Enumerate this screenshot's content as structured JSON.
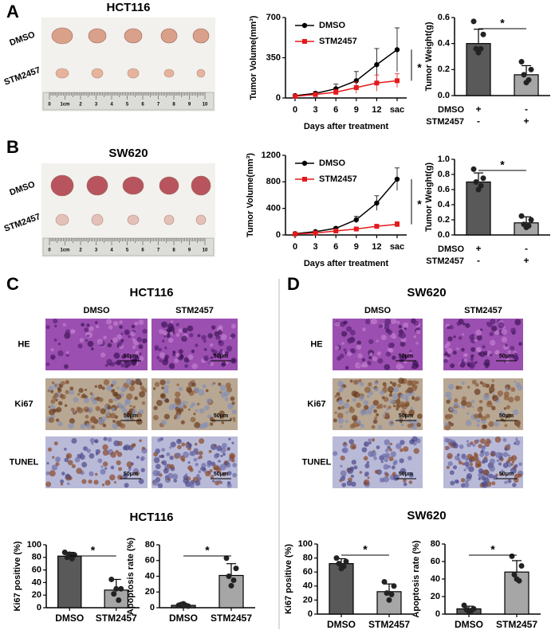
{
  "figure": {
    "panel_labels": [
      "A",
      "B",
      "C",
      "D"
    ],
    "photos": [
      {
        "title": "HCT116",
        "rows": [
          "DMSO",
          "STM2457"
        ],
        "ruler": [
          "0",
          "1cm",
          "2",
          "3",
          "4",
          "5",
          "6",
          "7",
          "8",
          "9",
          "10"
        ]
      },
      {
        "title": "SW620",
        "rows": [
          "DMSO",
          "STM2457"
        ],
        "ruler": [
          "0",
          "1cm",
          "2",
          "3",
          "4",
          "5",
          "6",
          "7",
          "8",
          "9",
          "10"
        ]
      }
    ],
    "histology": [
      {
        "title": "HCT116",
        "columns": [
          "DMSO",
          "STM2457"
        ],
        "rows": [
          "HE",
          "Ki67",
          "TUNEL"
        ],
        "scale_bar": "50μm"
      },
      {
        "title": "SW620",
        "columns": [
          "DMSO",
          "STM2457"
        ],
        "rows": [
          "HE",
          "Ki67",
          "TUNEL"
        ],
        "scale_bar": "50μm"
      }
    ],
    "bar_titles": [
      "HCT116",
      "SW620"
    ]
  },
  "chart_data": [
    {
      "type": "line",
      "categories": [
        "0",
        "3",
        "6",
        "9",
        "12",
        "sac"
      ],
      "xlabel": "Days after treatment",
      "ylabel": "Tumor Volume(mm³)",
      "ylim": [
        0,
        700
      ],
      "yticks": [
        0,
        350,
        700
      ],
      "annotation": "*",
      "series": [
        {
          "name": "DMSO",
          "color": "#000000",
          "marker": "circle",
          "values": [
            20,
            40,
            80,
            150,
            290,
            420
          ],
          "errors": [
            5,
            15,
            40,
            80,
            140,
            190
          ]
        },
        {
          "name": "STM2457",
          "color": "#e31a1c",
          "marker": "square",
          "values": [
            15,
            30,
            50,
            90,
            130,
            150
          ],
          "errors": [
            5,
            10,
            25,
            50,
            70,
            60
          ]
        }
      ]
    },
    {
      "type": "bar",
      "categories": [
        null,
        null
      ],
      "ylabel": "Tumor Weight(g)",
      "values": [
        0.4,
        0.16
      ],
      "errors": [
        0.11,
        0.07
      ],
      "points": [
        [
          0.57,
          0.47,
          0.36,
          0.36,
          0.33
        ],
        [
          0.26,
          0.2,
          0.16,
          0.12,
          0.1
        ]
      ],
      "colors": [
        "#595959",
        "#a6a6a6"
      ],
      "ylim": [
        0,
        0.6
      ],
      "yticks": [
        {
          "value": 0,
          "label": "0.0"
        },
        0.2,
        0.4,
        0.6
      ],
      "annotation": "*",
      "treatment_rows": [
        {
          "label": "DMSO",
          "marks": [
            "+",
            "-"
          ]
        },
        {
          "label": "STM2457",
          "marks": [
            "-",
            "+"
          ]
        }
      ]
    },
    {
      "type": "line",
      "categories": [
        "0",
        "3",
        "6",
        "9",
        "12",
        "sac"
      ],
      "xlabel": "Days after treatment",
      "ylabel": "Tumor Volume(mm³)",
      "ylim": [
        0,
        1200
      ],
      "yticks": [
        0,
        400,
        800,
        1200
      ],
      "annotation": "*",
      "series": [
        {
          "name": "DMSO",
          "color": "#000000",
          "marker": "circle",
          "values": [
            20,
            50,
            100,
            230,
            480,
            840
          ],
          "errors": [
            5,
            10,
            20,
            50,
            110,
            170
          ]
        },
        {
          "name": "STM2457",
          "color": "#e31a1c",
          "marker": "square",
          "values": [
            15,
            30,
            60,
            90,
            130,
            160
          ],
          "errors": [
            5,
            10,
            15,
            20,
            30,
            40
          ]
        }
      ]
    },
    {
      "type": "bar",
      "categories": [
        null,
        null
      ],
      "ylabel": "Tumor Weight(g)",
      "values": [
        0.7,
        0.16
      ],
      "errors": [
        0.12,
        0.08
      ],
      "points": [
        [
          0.87,
          0.75,
          0.7,
          0.65,
          0.6
        ],
        [
          0.25,
          0.2,
          0.14,
          0.12,
          0.1
        ]
      ],
      "colors": [
        "#595959",
        "#a6a6a6"
      ],
      "ylim": [
        0,
        1.0
      ],
      "yticks": [
        {
          "value": 0,
          "label": "0.0"
        },
        0.2,
        0.4,
        0.6,
        0.8,
        {
          "value": 1.0,
          "label": "1.0"
        }
      ],
      "annotation": "*",
      "treatment_rows": [
        {
          "label": "DMSO",
          "marks": [
            "+",
            "-"
          ]
        },
        {
          "label": "STM2457",
          "marks": [
            "-",
            "+"
          ]
        }
      ]
    },
    {
      "type": "bar",
      "categories": [
        "DMSO",
        "STM2457"
      ],
      "ylabel": "Ki67 positive (%)",
      "values": [
        82,
        28
      ],
      "errors": [
        6,
        17
      ],
      "points": [
        [
          88,
          84,
          80,
          78,
          85
        ],
        [
          45,
          30,
          22,
          12,
          30
        ]
      ],
      "colors": [
        "#595959",
        "#a6a6a6"
      ],
      "ylim": [
        0,
        100
      ],
      "yticks": [
        0,
        20,
        40,
        60,
        80,
        100
      ],
      "annotation": "*"
    },
    {
      "type": "bar",
      "categories": [
        "DMSO",
        "STM2457"
      ],
      "ylabel": "Apoptosis rate (%)",
      "values": [
        3,
        41
      ],
      "errors": [
        1,
        15
      ],
      "points": [
        [
          3,
          2,
          4,
          3,
          5
        ],
        [
          63,
          50,
          40,
          35,
          28
        ]
      ],
      "colors": [
        "#595959",
        "#a6a6a6"
      ],
      "ylim": [
        0,
        80
      ],
      "yticks": [
        0,
        20,
        40,
        60,
        80
      ],
      "annotation": "*"
    },
    {
      "type": "bar",
      "categories": [
        "DMSO",
        "STM2457"
      ],
      "ylabel": "Ki67 positive (%)",
      "values": [
        72,
        32
      ],
      "errors": [
        7,
        11
      ],
      "points": [
        [
          80,
          75,
          72,
          68,
          65
        ],
        [
          46,
          40,
          30,
          28,
          20
        ]
      ],
      "colors": [
        "#595959",
        "#a6a6a6"
      ],
      "ylim": [
        0,
        100
      ],
      "yticks": [
        0,
        20,
        40,
        60,
        80,
        100
      ],
      "annotation": "*"
    },
    {
      "type": "bar",
      "categories": [
        "DMSO",
        "STM2457"
      ],
      "ylabel": "Apoptosis rate (%)",
      "values": [
        6,
        48
      ],
      "errors": [
        3,
        13
      ],
      "points": [
        [
          10,
          6,
          5,
          4,
          3
        ],
        [
          66,
          55,
          45,
          38,
          40
        ]
      ],
      "colors": [
        "#595959",
        "#a6a6a6"
      ],
      "ylim": [
        0,
        80
      ],
      "yticks": [
        0,
        20,
        40,
        60,
        80
      ],
      "annotation": "*"
    }
  ]
}
